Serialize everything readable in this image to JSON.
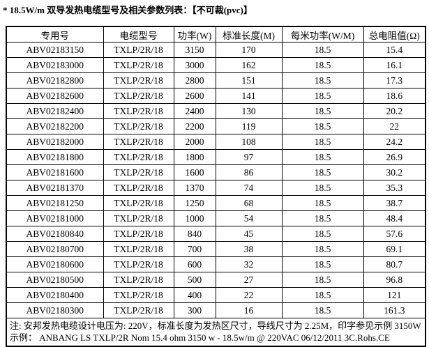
{
  "title": "* 18.5W/m 双导发热电缆型号及相关参数列表：【不可裁(pvc)】",
  "colors": {
    "text": "#000000",
    "border": "#000000",
    "background": "#ffffff"
  },
  "table": {
    "headers": [
      "专用号",
      "电缆型号",
      "功率(W)",
      "标准长度(M)",
      "每米功率(W/M)",
      "总电阻值(Ω)"
    ],
    "rows": [
      [
        "ABV02183150",
        "TXLP/2R/18",
        "3150",
        "170",
        "18.5",
        "15.4"
      ],
      [
        "ABV02183000",
        "TXLP/2R/18",
        "3000",
        "162",
        "18.5",
        "16.1"
      ],
      [
        "ABV02182800",
        "TXLP/2R/18",
        "2800",
        "151",
        "18.5",
        "17.3"
      ],
      [
        "ABV02182600",
        "TXLP/2R/18",
        "2600",
        "141",
        "18.5",
        "18.6"
      ],
      [
        "ABV02182400",
        "TXLP/2R/18",
        "2400",
        "130",
        "18.5",
        "20.2"
      ],
      [
        "ABV02182200",
        "TXLP/2R/18",
        "2200",
        "119",
        "18.5",
        "22"
      ],
      [
        "ABV02182000",
        "TXLP/2R/18",
        "2000",
        "108",
        "18.5",
        "24.2"
      ],
      [
        "ABV02181800",
        "TXLP/2R/18",
        "1800",
        "97",
        "18.5",
        "26.9"
      ],
      [
        "ABV02181600",
        "TXLP/2R/18",
        "1600",
        "86",
        "18.5",
        "30.2"
      ],
      [
        "ABV02181370",
        "TXLP/2R/18",
        "1370",
        "74",
        "18.5",
        "35.3"
      ],
      [
        "ABV02181250",
        "TXLP/2R/18",
        "1250",
        "68",
        "18.5",
        "38.7"
      ],
      [
        "ABV02181000",
        "TXLP/2R/18",
        "1000",
        "54",
        "18.5",
        "48.4"
      ],
      [
        "ABV02180840",
        "TXLP/2R/18",
        "840",
        "45",
        "18.5",
        "57.6"
      ],
      [
        "ABV02180700",
        "TXLP/2R/18",
        "700",
        "38",
        "18.5",
        "69.1"
      ],
      [
        "ABV02180600",
        "TXLP/2R/18",
        "600",
        "32",
        "18.5",
        "80.7"
      ],
      [
        "ABV02180500",
        "TXLP/2R/18",
        "500",
        "27",
        "18.5",
        "96.8"
      ],
      [
        "ABV02180400",
        "TXLP/2R/18",
        "400",
        "22",
        "18.5",
        "121"
      ],
      [
        "ABV02180300",
        "TXLP/2R/18",
        "300",
        "16",
        "18.5",
        "161.3"
      ]
    ],
    "notes": [
      "注: 安邦发热电缆设计电压为: 220V，标准长度为发热区尺寸，导线尺寸为 2.25M，印字参见示例 3150W",
      "示例：  ANBANG LS TXLP/2R Nom 15.4 ohm 3150 w - 18.5w/m @ 220VAC 06/12/2011 3C.Rohs.CE"
    ]
  }
}
